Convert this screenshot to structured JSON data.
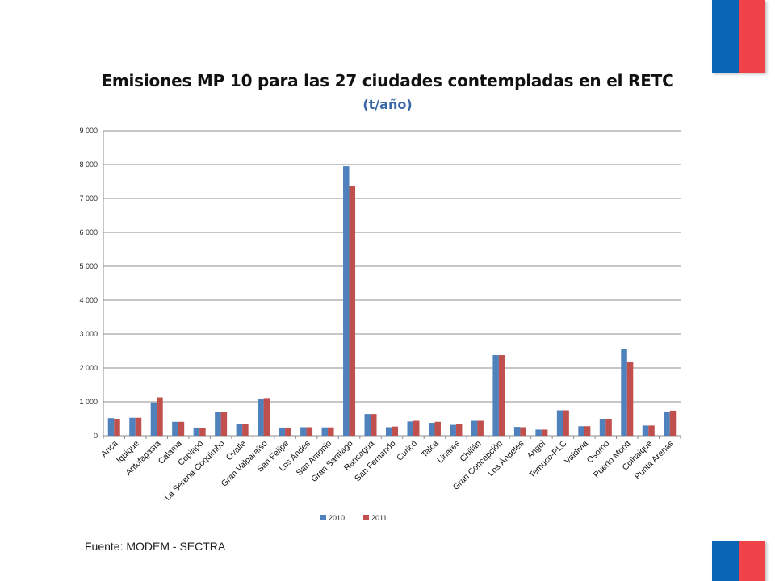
{
  "colors": {
    "series_2010": "#4f81bd",
    "series_2011": "#c0504d",
    "flag_blue": "#0a66b4",
    "flag_red": "#ef4349",
    "subtitle": "#3a68a8"
  },
  "footer": {
    "source": "Fuente: MODEM - SECTRA"
  },
  "chart_data": {
    "type": "bar",
    "title": "Emisiones MP 10 para las 27 ciudades contempladas en el RETC",
    "subtitle": "(t/año)",
    "xlabel": "",
    "ylabel": "",
    "ylim": [
      0,
      9000
    ],
    "yticks": [
      "0",
      "1 000",
      "2 000",
      "3 000",
      "4 000",
      "5 000",
      "6 000",
      "7 000",
      "8 000",
      "9 000"
    ],
    "grid": true,
    "legend_position": "bottom",
    "categories": [
      "Arica",
      "Iquique",
      "Antofagasta",
      "Calama",
      "Copiapó",
      "La Serena-Coquimbo",
      "Ovalle",
      "Gran Valparaíso",
      "San Felipe",
      "Los Andes",
      "San Antonio",
      "Gran Santiago",
      "Rancagua",
      "San Fernando",
      "Curicó",
      "Talca",
      "Linares",
      "Chillán",
      "Gran Concepción",
      "Los Ángeles",
      "Angol",
      "Temuco-PLC",
      "Valdivia",
      "Osorno",
      "Puerto Montt",
      "Coihaique",
      "Punta Arenas"
    ],
    "series": [
      {
        "name": "2010",
        "values": [
          520,
          530,
          980,
          410,
          240,
          700,
          340,
          1080,
          240,
          250,
          245,
          7950,
          640,
          250,
          420,
          380,
          320,
          440,
          2380,
          260,
          180,
          750,
          280,
          500,
          2570,
          300,
          710
        ]
      },
      {
        "name": "2011",
        "values": [
          500,
          530,
          1130,
          410,
          220,
          700,
          340,
          1110,
          240,
          250,
          245,
          7370,
          640,
          270,
          440,
          410,
          350,
          440,
          2380,
          250,
          180,
          750,
          280,
          500,
          2190,
          300,
          740
        ]
      }
    ]
  }
}
